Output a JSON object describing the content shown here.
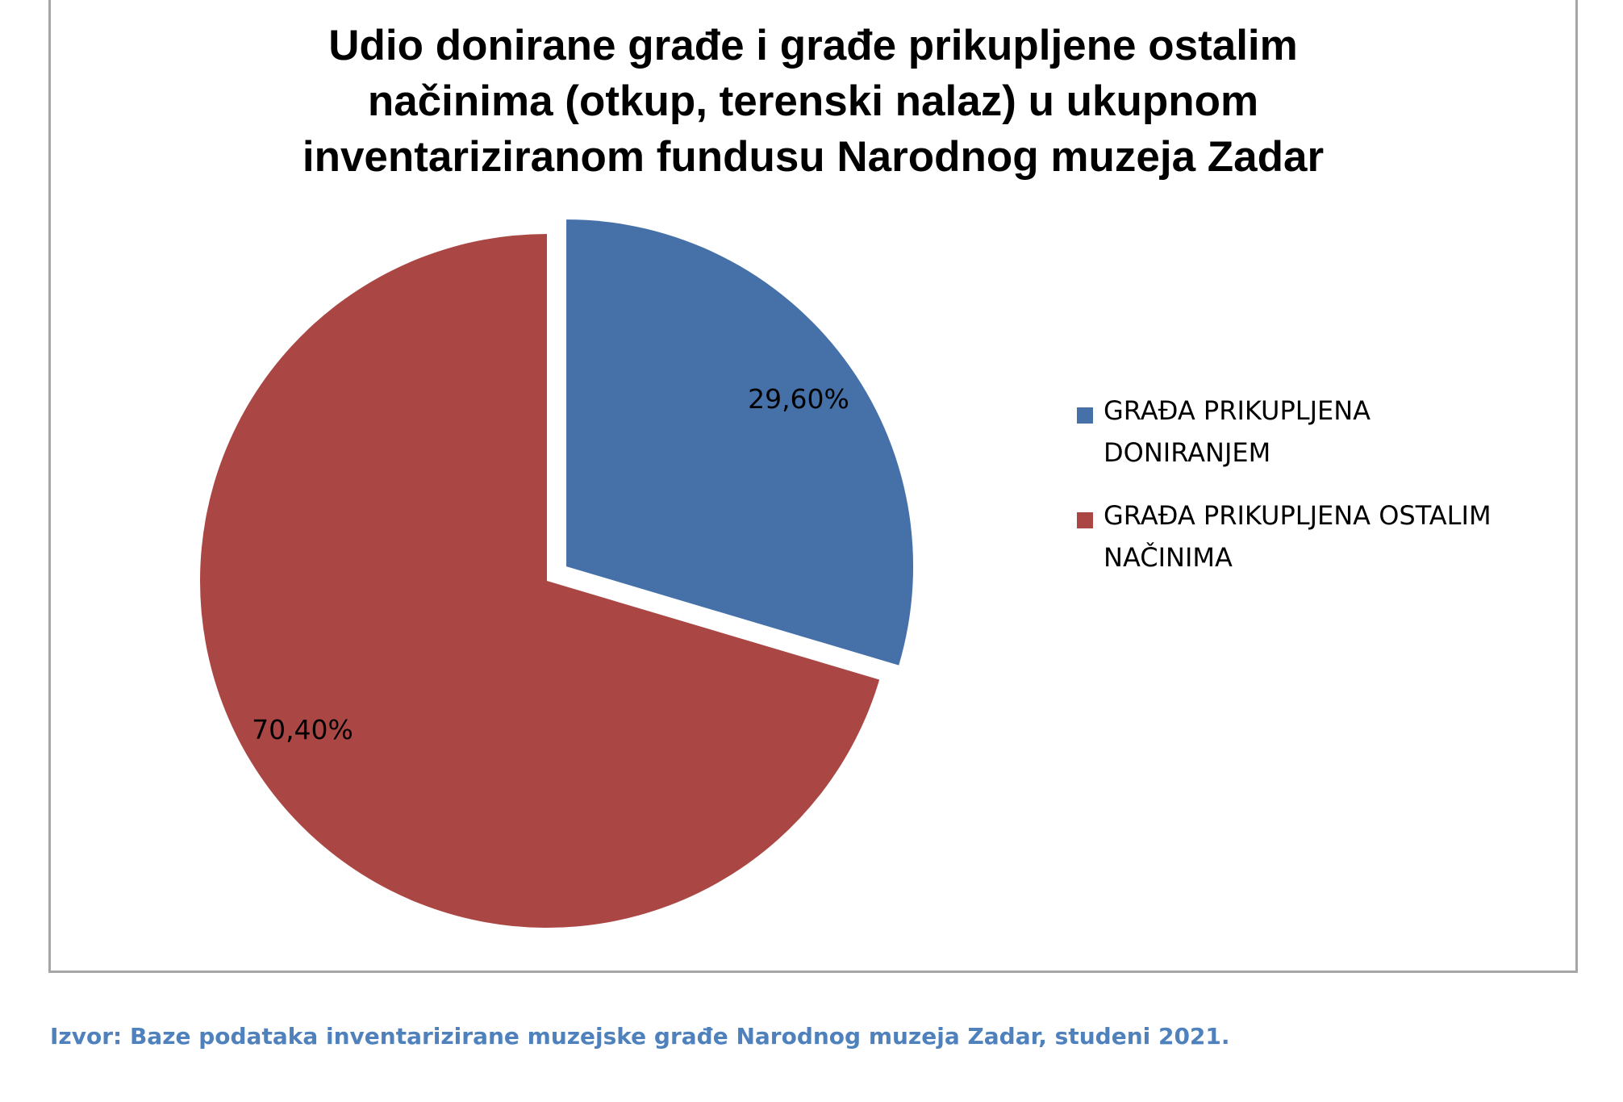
{
  "chart_data": {
    "type": "pie",
    "title_lines": [
      "Udio donirane građe i  građe prikupljene ostalim",
      "načinima (otkup, terenski nalaz) u ukupnom",
      "inventariziranom fundusu Narodnog muzeja Zadar"
    ],
    "slices": [
      {
        "name": "GRAĐA PRIKUPLJENA DONIRANJEM",
        "value": 29.6,
        "label": "29,60%",
        "color": "#4571a8",
        "exploded": true
      },
      {
        "name": "GRAĐA PRIKUPLJENA OSTALIM NAČINIMA",
        "value": 70.4,
        "label": "70,40%",
        "color": "#aa4745",
        "exploded": false
      }
    ],
    "legend_position": "right",
    "legend": [
      {
        "lines": [
          "GRAĐA PRIKUPLJENA",
          "DONIRANJEM"
        ],
        "color": "#4571a8"
      },
      {
        "lines": [
          "GRAĐA PRIKUPLJENA OSTALIM",
          "NAČINIMA"
        ],
        "color": "#aa4745"
      }
    ]
  },
  "source_note": "Izvor: Baze podataka inventarizirane muzejske građe Narodnog muzeja Zadar, studeni 2021."
}
